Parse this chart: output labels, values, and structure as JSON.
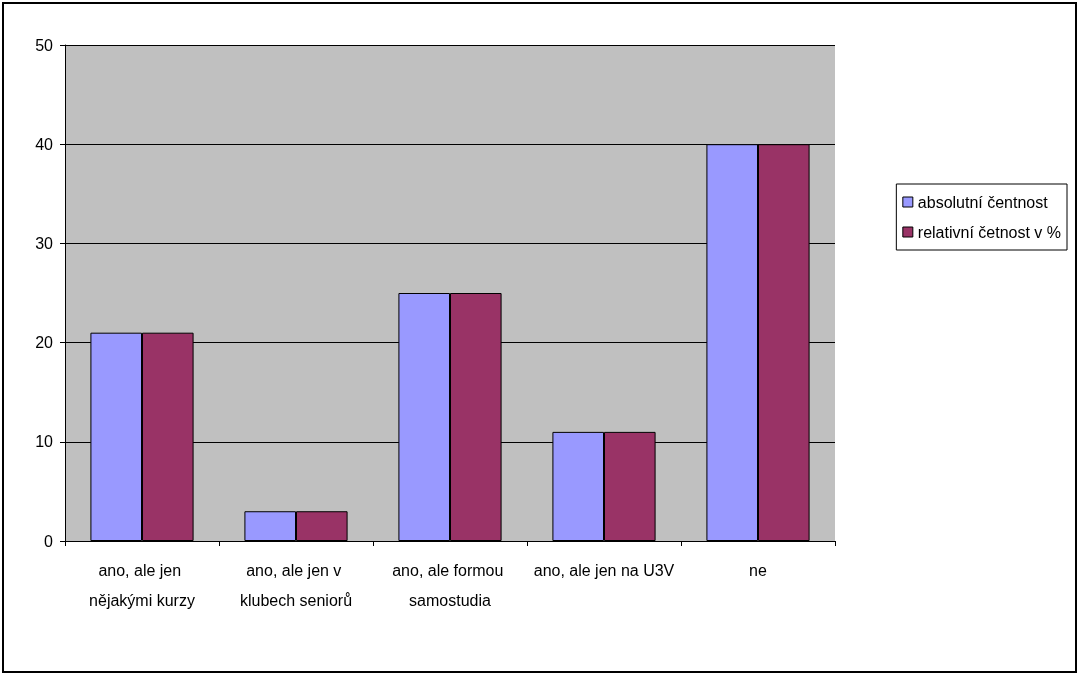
{
  "chart_data": {
    "type": "bar",
    "categories": [
      "ano, ale jen nějakými kurzy",
      "ano, ale jen v klubech seniorů",
      "ano, ale formou samostudia",
      "ano, ale jen na U3V",
      "ne"
    ],
    "series": [
      {
        "name": "absolutní čentnost",
        "color": "#9999ff",
        "values": [
          21,
          3,
          25,
          11,
          40
        ]
      },
      {
        "name": "relativní četnost v %",
        "color": "#993366",
        "values": [
          21,
          3,
          25,
          11,
          40
        ]
      }
    ],
    "ylim": [
      0,
      50
    ],
    "yticks": [
      0,
      10,
      20,
      30,
      40,
      50
    ],
    "grid": "y",
    "legend": "right"
  }
}
